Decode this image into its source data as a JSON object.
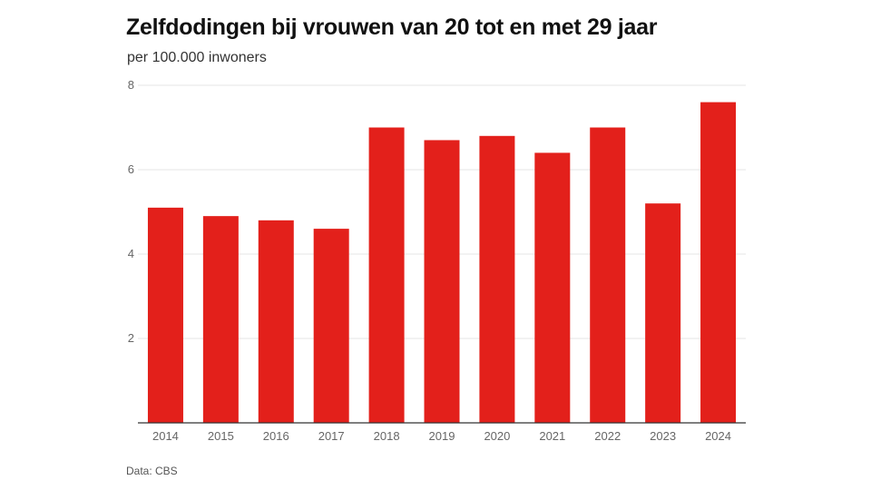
{
  "chart_data": {
    "type": "bar",
    "title": "Zelfdodingen bij vrouwen van 20 tot en met 29 jaar",
    "subtitle": "per 100.000 inwoners",
    "source": "Data: CBS",
    "categories": [
      "2014",
      "2015",
      "2016",
      "2017",
      "2018",
      "2019",
      "2020",
      "2021",
      "2022",
      "2023",
      "2024"
    ],
    "values": [
      5.1,
      4.9,
      4.8,
      4.6,
      7.0,
      6.7,
      6.8,
      6.4,
      7.0,
      5.2,
      7.6
    ],
    "ylim": [
      0,
      8
    ],
    "yticks": [
      2,
      4,
      6,
      8
    ],
    "ytick_labels": [
      "2",
      "4",
      "6",
      "8"
    ],
    "grid": true,
    "bar_color": "#e3201b",
    "grid_color": "#e6e6e6",
    "axis_color": "#333333"
  }
}
